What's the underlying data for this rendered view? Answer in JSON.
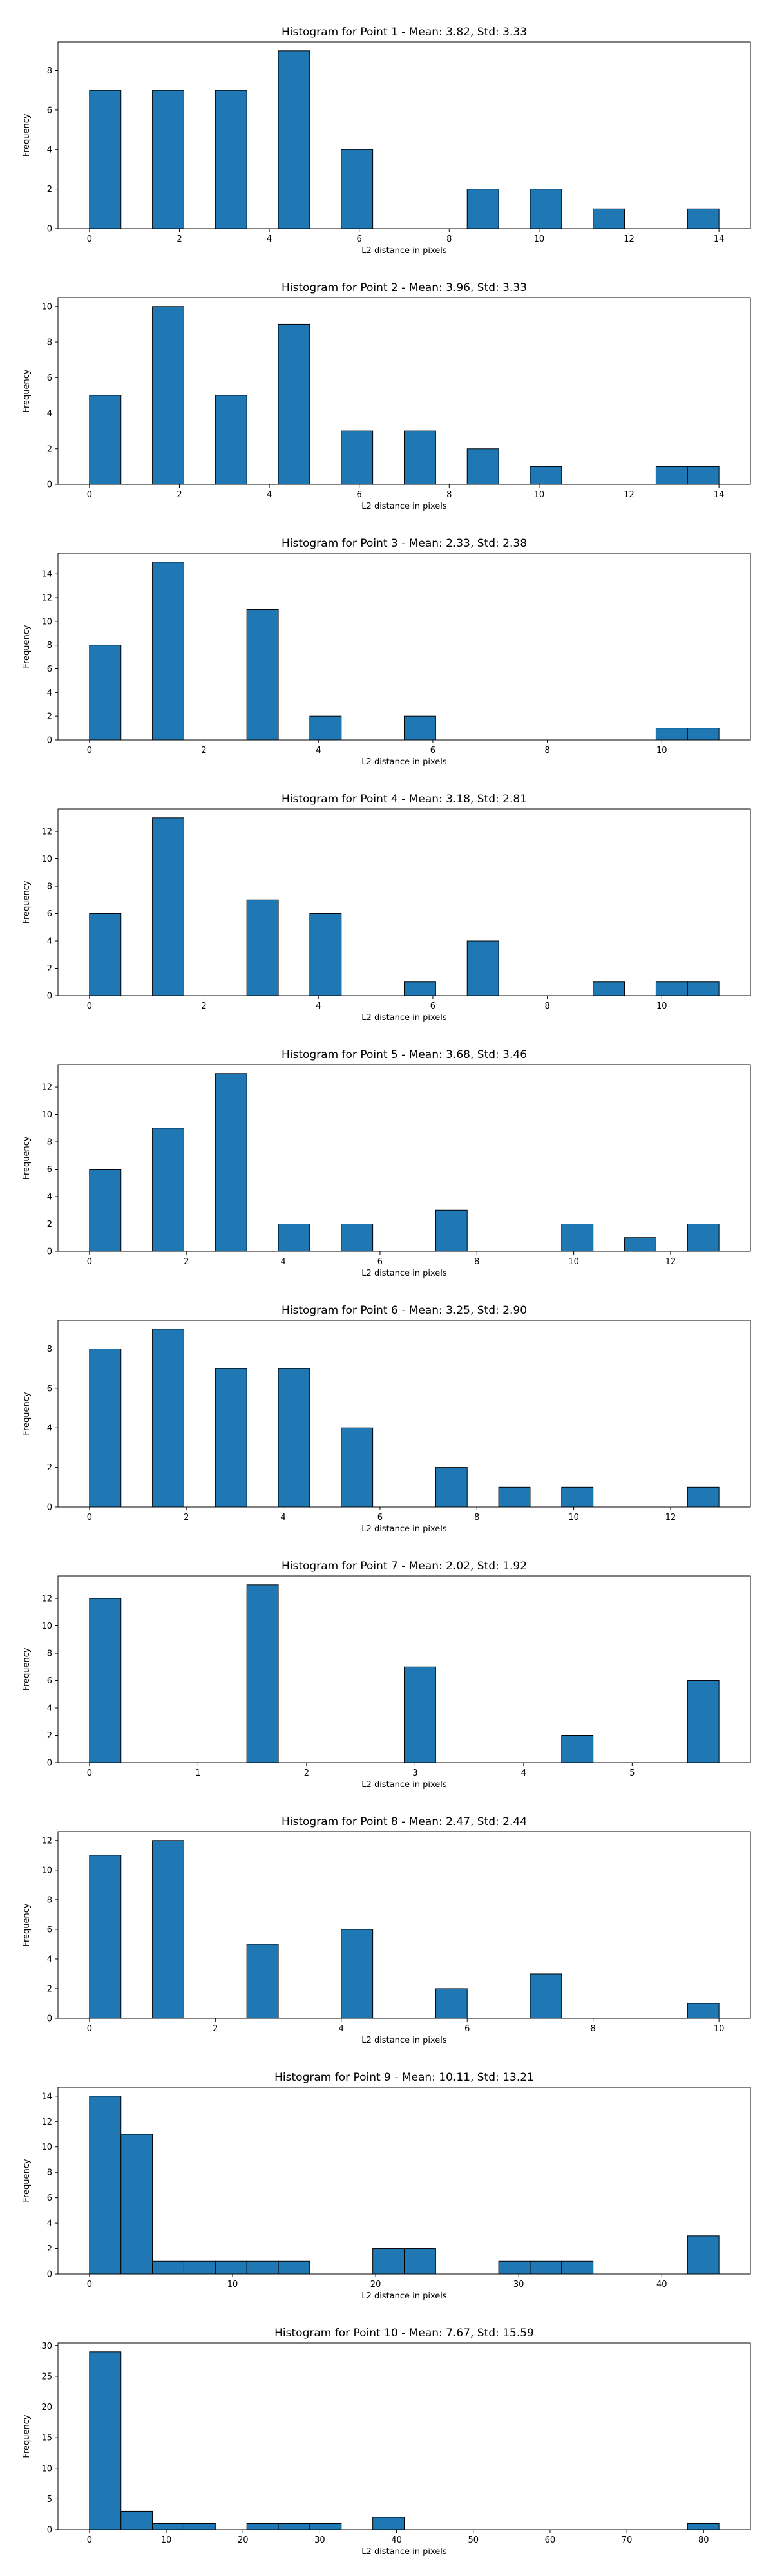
{
  "style": {
    "bar_color": "#1f77b4",
    "edge_color": "#000000"
  },
  "chart_data": [
    {
      "type": "bar",
      "title": "Histogram for Point 1 - Mean: 3.82, Std: 3.33",
      "xlabel": "L2 distance in pixels",
      "ylabel": "Frequency",
      "xlim": [
        -0.7,
        14.7
      ],
      "ylim": [
        0,
        9.45
      ],
      "xticks": [
        0,
        2,
        4,
        6,
        8,
        10,
        12,
        14
      ],
      "xtick_labels": [
        "0",
        "2",
        "4",
        "6",
        "8",
        "10",
        "12",
        "14"
      ],
      "yticks": [
        0,
        2,
        4,
        6,
        8
      ],
      "ytick_labels": [
        "0",
        "2",
        "4",
        "6",
        "8"
      ],
      "bin_edges": [
        0,
        0.7,
        1.4,
        2.1,
        2.8,
        3.5,
        4.2,
        4.9,
        5.6,
        6.3,
        7.0,
        7.7,
        8.4,
        9.1,
        9.8,
        10.5,
        11.2,
        11.9,
        12.6,
        13.3,
        14.0
      ],
      "counts": [
        7,
        0,
        7,
        0,
        7,
        0,
        9,
        0,
        4,
        0,
        0,
        0,
        2,
        0,
        2,
        0,
        1,
        0,
        0,
        1
      ]
    },
    {
      "type": "bar",
      "title": "Histogram for Point 2 - Mean: 3.96, Std: 3.33",
      "xlabel": "L2 distance in pixels",
      "ylabel": "Frequency",
      "xlim": [
        -0.7,
        14.7
      ],
      "ylim": [
        0,
        10.5
      ],
      "xticks": [
        0,
        2,
        4,
        6,
        8,
        10,
        12,
        14
      ],
      "xtick_labels": [
        "0",
        "2",
        "4",
        "6",
        "8",
        "10",
        "12",
        "14"
      ],
      "yticks": [
        0,
        2,
        4,
        6,
        8,
        10
      ],
      "ytick_labels": [
        "0",
        "2",
        "4",
        "6",
        "8",
        "10"
      ],
      "bin_edges": [
        0,
        0.7,
        1.4,
        2.1,
        2.8,
        3.5,
        4.2,
        4.9,
        5.6,
        6.3,
        7.0,
        7.7,
        8.4,
        9.1,
        9.8,
        10.5,
        11.2,
        11.9,
        12.6,
        13.3,
        14.0
      ],
      "counts": [
        5,
        0,
        10,
        0,
        5,
        0,
        9,
        0,
        3,
        0,
        3,
        0,
        2,
        0,
        1,
        0,
        0,
        0,
        1,
        1
      ]
    },
    {
      "type": "bar",
      "title": "Histogram for Point 3 - Mean: 2.33, Std: 2.38",
      "xlabel": "L2 distance in pixels",
      "ylabel": "Frequency",
      "xlim": [
        -0.55,
        11.55
      ],
      "ylim": [
        0,
        15.75
      ],
      "xticks": [
        0,
        2,
        4,
        6,
        8,
        10
      ],
      "xtick_labels": [
        "0",
        "2",
        "4",
        "6",
        "8",
        "10"
      ],
      "yticks": [
        0,
        2,
        4,
        6,
        8,
        10,
        12,
        14
      ],
      "ytick_labels": [
        "0",
        "2",
        "4",
        "6",
        "8",
        "10",
        "12",
        "14"
      ],
      "bin_edges": [
        0,
        0.55,
        1.1,
        1.65,
        2.2,
        2.75,
        3.3,
        3.85,
        4.4,
        4.95,
        5.5,
        6.05,
        6.6,
        7.15,
        7.7,
        8.25,
        8.8,
        9.35,
        9.9,
        10.45,
        11.0
      ],
      "counts": [
        8,
        0,
        15,
        0,
        0,
        11,
        0,
        2,
        0,
        0,
        2,
        0,
        0,
        0,
        0,
        0,
        0,
        0,
        1,
        1
      ]
    },
    {
      "type": "bar",
      "title": "Histogram for Point 4 - Mean: 3.18, Std: 2.81",
      "xlabel": "L2 distance in pixels",
      "ylabel": "Frequency",
      "xlim": [
        -0.55,
        11.55
      ],
      "ylim": [
        0,
        13.65
      ],
      "xticks": [
        0,
        2,
        4,
        6,
        8,
        10
      ],
      "xtick_labels": [
        "0",
        "2",
        "4",
        "6",
        "8",
        "10"
      ],
      "yticks": [
        0,
        2,
        4,
        6,
        8,
        10,
        12
      ],
      "ytick_labels": [
        "0",
        "2",
        "4",
        "6",
        "8",
        "10",
        "12"
      ],
      "bin_edges": [
        0,
        0.55,
        1.1,
        1.65,
        2.2,
        2.75,
        3.3,
        3.85,
        4.4,
        4.95,
        5.5,
        6.05,
        6.6,
        7.15,
        7.7,
        8.25,
        8.8,
        9.35,
        9.9,
        10.45,
        11.0
      ],
      "counts": [
        6,
        0,
        13,
        0,
        0,
        7,
        0,
        6,
        0,
        0,
        1,
        0,
        4,
        0,
        0,
        0,
        1,
        0,
        1,
        1
      ]
    },
    {
      "type": "bar",
      "title": "Histogram for Point 5 - Mean: 3.68, Std: 3.46",
      "xlabel": "L2 distance in pixels",
      "ylabel": "Frequency",
      "xlim": [
        -0.65,
        13.65
      ],
      "ylim": [
        0,
        13.65
      ],
      "xticks": [
        0,
        2,
        4,
        6,
        8,
        10,
        12
      ],
      "xtick_labels": [
        "0",
        "2",
        "4",
        "6",
        "8",
        "10",
        "12"
      ],
      "yticks": [
        0,
        2,
        4,
        6,
        8,
        10,
        12
      ],
      "ytick_labels": [
        "0",
        "2",
        "4",
        "6",
        "8",
        "10",
        "12"
      ],
      "bin_edges": [
        0,
        0.65,
        1.3,
        1.95,
        2.6,
        3.25,
        3.9,
        4.55,
        5.2,
        5.85,
        6.5,
        7.15,
        7.8,
        8.45,
        9.1,
        9.75,
        10.4,
        11.05,
        11.7,
        12.35,
        13.0
      ],
      "counts": [
        6,
        0,
        9,
        0,
        13,
        0,
        2,
        0,
        2,
        0,
        0,
        3,
        0,
        0,
        0,
        2,
        0,
        1,
        0,
        2
      ]
    },
    {
      "type": "bar",
      "title": "Histogram for Point 6 - Mean: 3.25, Std: 2.90",
      "xlabel": "L2 distance in pixels",
      "ylabel": "Frequency",
      "xlim": [
        -0.65,
        13.65
      ],
      "ylim": [
        0,
        9.45
      ],
      "xticks": [
        0,
        2,
        4,
        6,
        8,
        10,
        12
      ],
      "xtick_labels": [
        "0",
        "2",
        "4",
        "6",
        "8",
        "10",
        "12"
      ],
      "yticks": [
        0,
        2,
        4,
        6,
        8
      ],
      "ytick_labels": [
        "0",
        "2",
        "4",
        "6",
        "8"
      ],
      "bin_edges": [
        0,
        0.65,
        1.3,
        1.95,
        2.6,
        3.25,
        3.9,
        4.55,
        5.2,
        5.85,
        6.5,
        7.15,
        7.8,
        8.45,
        9.1,
        9.75,
        10.4,
        11.05,
        11.7,
        12.35,
        13.0
      ],
      "counts": [
        8,
        0,
        9,
        0,
        7,
        0,
        7,
        0,
        4,
        0,
        0,
        2,
        0,
        1,
        0,
        1,
        0,
        0,
        0,
        1
      ]
    },
    {
      "type": "bar",
      "title": "Histogram for Point 7 - Mean: 2.02, Std: 1.92",
      "xlabel": "L2 distance in pixels",
      "ylabel": "Frequency",
      "xlim": [
        -0.29,
        6.09
      ],
      "ylim": [
        0,
        13.65
      ],
      "xticks": [
        0,
        1,
        2,
        3,
        4,
        5
      ],
      "xtick_labels": [
        "0",
        "1",
        "2",
        "3",
        "4",
        "5"
      ],
      "yticks": [
        0,
        2,
        4,
        6,
        8,
        10,
        12
      ],
      "ytick_labels": [
        "0",
        "2",
        "4",
        "6",
        "8",
        "10",
        "12"
      ],
      "bin_edges": [
        0,
        0.29,
        0.58,
        0.87,
        1.16,
        1.45,
        1.74,
        2.03,
        2.32,
        2.61,
        2.9,
        3.19,
        3.48,
        3.77,
        4.06,
        4.35,
        4.64,
        4.93,
        5.22,
        5.51,
        5.8
      ],
      "counts": [
        12,
        0,
        0,
        0,
        0,
        13,
        0,
        0,
        0,
        0,
        7,
        0,
        0,
        0,
        0,
        2,
        0,
        0,
        0,
        6
      ]
    },
    {
      "type": "bar",
      "title": "Histogram for Point 8 - Mean: 2.47, Std: 2.44",
      "xlabel": "L2 distance in pixels",
      "ylabel": "Frequency",
      "xlim": [
        -0.5,
        10.5
      ],
      "ylim": [
        0,
        12.6
      ],
      "xticks": [
        0,
        2,
        4,
        6,
        8,
        10
      ],
      "xtick_labels": [
        "0",
        "2",
        "4",
        "6",
        "8",
        "10"
      ],
      "yticks": [
        0,
        2,
        4,
        6,
        8,
        10,
        12
      ],
      "ytick_labels": [
        "0",
        "2",
        "4",
        "6",
        "8",
        "10",
        "12"
      ],
      "bin_edges": [
        0,
        0.5,
        1.0,
        1.5,
        2.0,
        2.5,
        3.0,
        3.5,
        4.0,
        4.5,
        5.0,
        5.5,
        6.0,
        6.5,
        7.0,
        7.5,
        8.0,
        8.5,
        9.0,
        9.5,
        10.0
      ],
      "counts": [
        11,
        0,
        12,
        0,
        0,
        5,
        0,
        0,
        6,
        0,
        0,
        2,
        0,
        0,
        3,
        0,
        0,
        0,
        0,
        1
      ]
    },
    {
      "type": "bar",
      "title": "Histogram for Point 9 - Mean: 10.11, Std: 13.21",
      "xlabel": "L2 distance in pixels",
      "ylabel": "Frequency",
      "xlim": [
        -2.2,
        46.2
      ],
      "ylim": [
        0,
        14.7
      ],
      "xticks": [
        0,
        10,
        20,
        30,
        40
      ],
      "xtick_labels": [
        "0",
        "10",
        "20",
        "30",
        "40"
      ],
      "yticks": [
        0,
        2,
        4,
        6,
        8,
        10,
        12,
        14
      ],
      "ytick_labels": [
        "0",
        "2",
        "4",
        "6",
        "8",
        "10",
        "12",
        "14"
      ],
      "bin_edges": [
        0,
        2.2,
        4.4,
        6.6,
        8.8,
        11.0,
        13.2,
        15.4,
        17.6,
        19.8,
        22.0,
        24.2,
        26.4,
        28.6,
        30.8,
        33.0,
        35.2,
        37.4,
        39.6,
        41.8,
        44.0
      ],
      "counts": [
        14,
        11,
        1,
        1,
        1,
        1,
        1,
        0,
        0,
        2,
        2,
        0,
        0,
        1,
        1,
        1,
        0,
        0,
        0,
        3
      ]
    },
    {
      "type": "bar",
      "title": "Histogram for Point 10 - Mean: 7.67, Std: 15.59",
      "xlabel": "L2 distance in pixels",
      "ylabel": "Frequency",
      "xlim": [
        -4.1,
        86.1
      ],
      "ylim": [
        0,
        30.45
      ],
      "xticks": [
        0,
        10,
        20,
        30,
        40,
        50,
        60,
        70,
        80
      ],
      "xtick_labels": [
        "0",
        "10",
        "20",
        "30",
        "40",
        "50",
        "60",
        "70",
        "80"
      ],
      "yticks": [
        0,
        5,
        10,
        15,
        20,
        25,
        30
      ],
      "ytick_labels": [
        "0",
        "5",
        "10",
        "15",
        "20",
        "25",
        "30"
      ],
      "bin_edges": [
        0,
        4.1,
        8.2,
        12.3,
        16.4,
        20.5,
        24.6,
        28.7,
        32.8,
        36.9,
        41.0,
        45.1,
        49.2,
        53.3,
        57.4,
        61.5,
        65.6,
        69.7,
        73.8,
        77.9,
        82.0
      ],
      "counts": [
        29,
        3,
        1,
        1,
        0,
        1,
        1,
        1,
        0,
        2,
        0,
        0,
        0,
        0,
        0,
        0,
        0,
        0,
        0,
        1
      ]
    }
  ]
}
